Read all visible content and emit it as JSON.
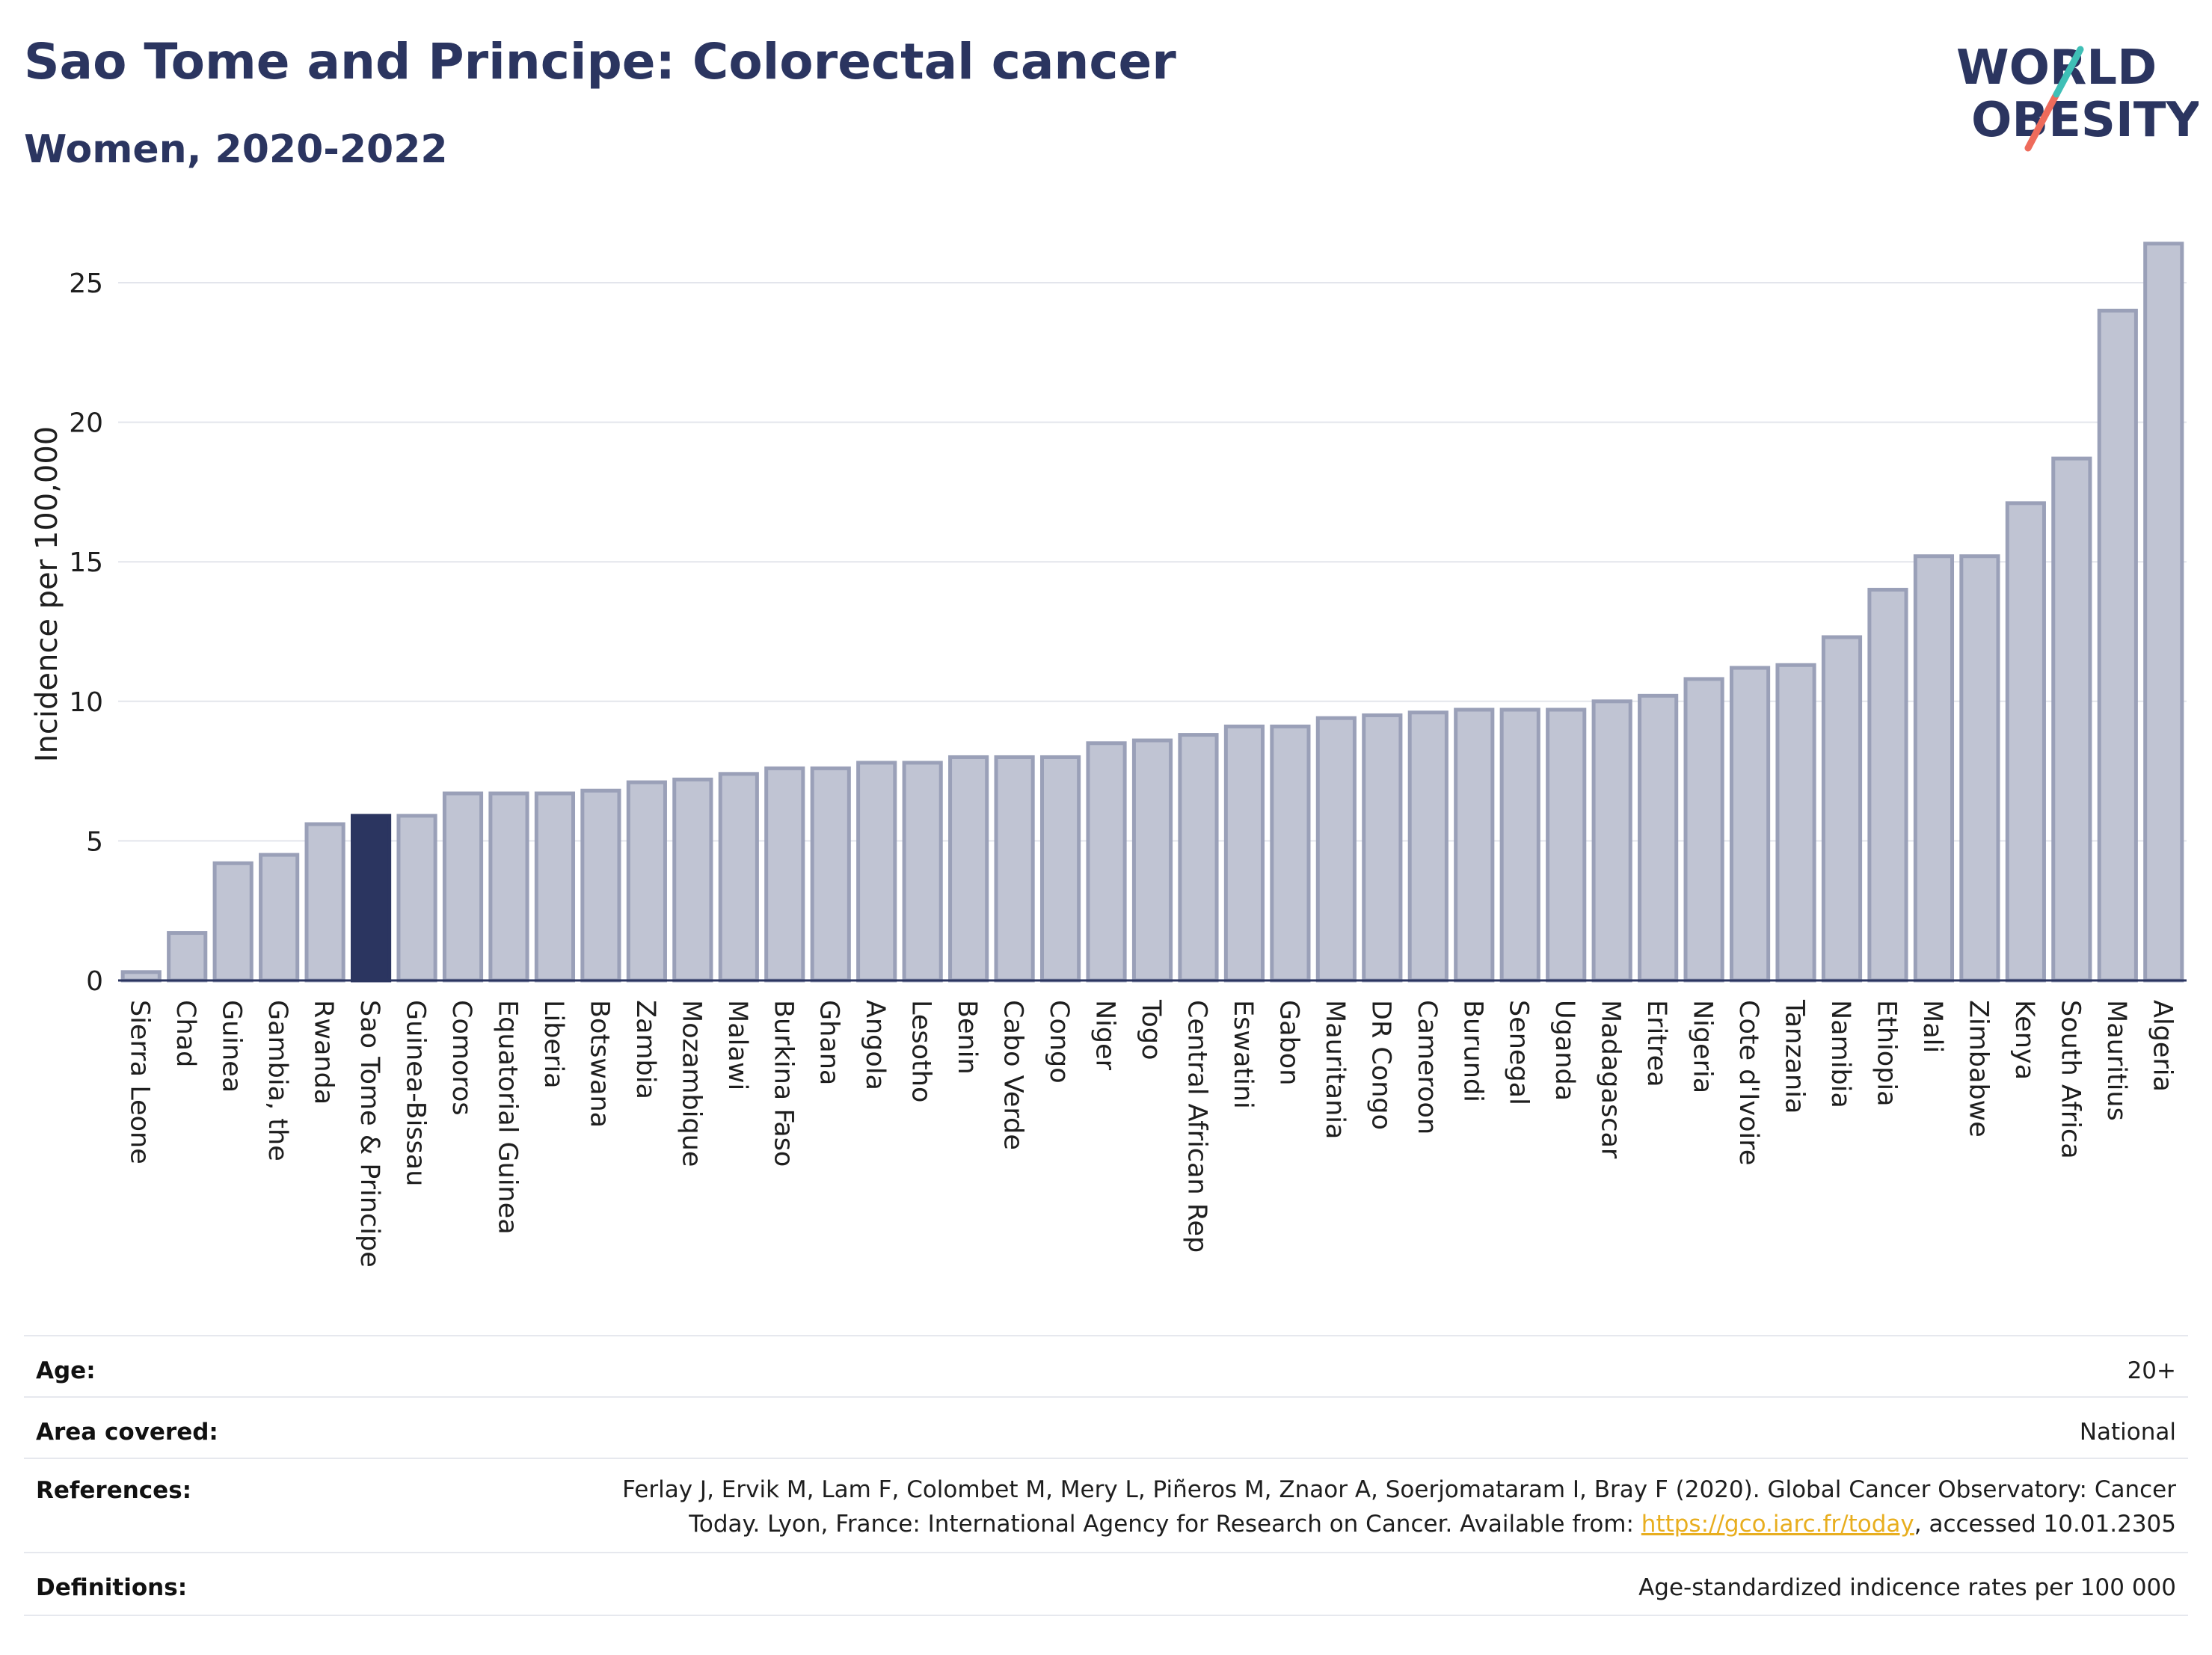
{
  "header": {
    "title": "Sao Tome and Principe: Colorectal cancer",
    "subtitle": "Women, 2020-2022"
  },
  "logo": {
    "line1": "WORLD",
    "line2": "OBESITY",
    "accent_teal": "#3fbfb6",
    "accent_coral": "#ee6b5b",
    "text_color": "#2b3560"
  },
  "chart_data": {
    "type": "bar",
    "ylabel": "Incidence per 100,000",
    "xlabel": "",
    "ylim": [
      0,
      27
    ],
    "yticks": [
      0,
      5,
      10,
      15,
      20,
      25
    ],
    "grid": true,
    "highlight": "Sao Tome & Principe",
    "colors": {
      "bar": "#c0c4d3",
      "bar_edge": "#9aa0b8",
      "highlight": "#2b3560",
      "grid": "#e3e5ec"
    },
    "categories": [
      "Sierra Leone",
      "Chad",
      "Guinea",
      "Gambia, the",
      "Rwanda",
      "Sao Tome & Principe",
      "Guinea-Bissau",
      "Comoros",
      "Equatorial Guinea",
      "Liberia",
      "Botswana",
      "Zambia",
      "Mozambique",
      "Malawi",
      "Burkina Faso",
      "Ghana",
      "Angola",
      "Lesotho",
      "Benin",
      "Cabo Verde",
      "Congo",
      "Niger",
      "Togo",
      "Central African Rep",
      "Eswatini",
      "Gabon",
      "Mauritania",
      "DR Congo",
      "Cameroon",
      "Burundi",
      "Senegal",
      "Uganda",
      "Madagascar",
      "Eritrea",
      "Nigeria",
      "Cote d'Ivoire",
      "Tanzania",
      "Namibia",
      "Ethiopia",
      "Mali",
      "Zimbabwe",
      "Kenya",
      "South Africa",
      "Mauritius",
      "Algeria"
    ],
    "values": [
      0.3,
      1.7,
      4.2,
      4.5,
      5.6,
      5.9,
      5.9,
      6.7,
      6.7,
      6.7,
      6.8,
      7.1,
      7.2,
      7.4,
      7.6,
      7.6,
      7.8,
      7.8,
      8.0,
      8.0,
      8.0,
      8.5,
      8.6,
      8.8,
      9.1,
      9.1,
      9.4,
      9.5,
      9.6,
      9.7,
      9.7,
      9.7,
      10.0,
      10.2,
      10.8,
      11.2,
      11.3,
      12.3,
      14.0,
      15.2,
      15.2,
      17.1,
      18.7,
      24.0,
      26.4
    ]
  },
  "meta": {
    "age": {
      "label": "Age:",
      "value": "20+"
    },
    "area": {
      "label": "Area covered:",
      "value": "National"
    },
    "references": {
      "label": "References:",
      "line1": "Ferlay J, Ervik M, Lam F, Colombet M, Mery L, Piñeros M, Znaor A, Soerjomataram I, Bray F (2020). Global Cancer Observatory: Cancer",
      "line2_pre": "Today. Lyon, France: International Agency for Research on Cancer. Available from: ",
      "link": "https://gco.iarc.fr/today",
      "line2_post": ", accessed 10.01.2305"
    },
    "definitions": {
      "label": "Definitions:",
      "value": "Age-standardized indicence rates per 100 000"
    }
  }
}
